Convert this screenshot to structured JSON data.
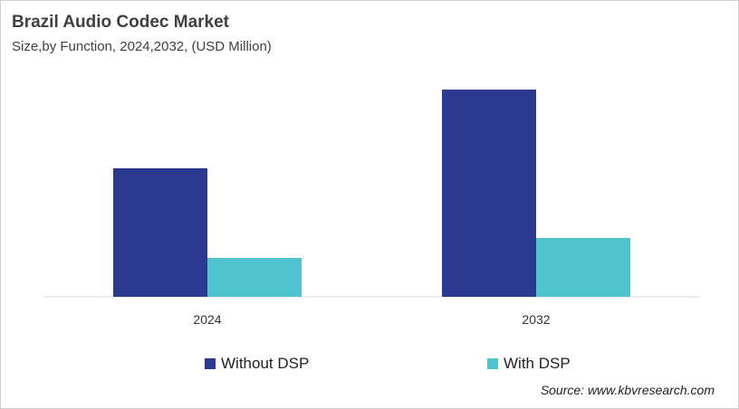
{
  "title": "Brazil Audio Codec Market",
  "subtitle": "Size,by Function, 2024,2032, (USD Million)",
  "source": "Source: www.kbvresearch.com",
  "chart_data": {
    "type": "bar",
    "title": "Brazil Audio Codec Market",
    "subtitle": "Size,by Function, 2024,2032, (USD Million)",
    "categories": [
      "2024",
      "2032"
    ],
    "series": [
      {
        "name": "Without DSP",
        "color": "#2b3990",
        "values": [
          142,
          229
        ]
      },
      {
        "name": "With DSP",
        "color": "#4fc4cf",
        "values": [
          43,
          65
        ]
      }
    ],
    "ylim": [
      0,
      250
    ],
    "grid": false,
    "y_axis_shown": false,
    "legend": "bottom"
  }
}
